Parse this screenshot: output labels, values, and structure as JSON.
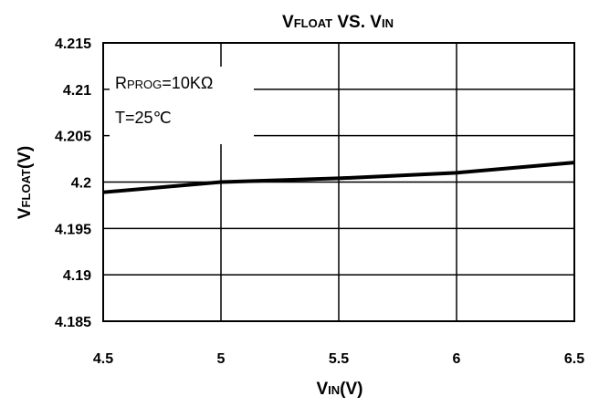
{
  "chart_data": {
    "type": "line",
    "title": {
      "main": "V",
      "sub": "FLOAT",
      "mid": " VS. ",
      "main2": "V",
      "sub2": "IN"
    },
    "xlabel": {
      "main": "V",
      "sub": "IN",
      "rest": "(V)"
    },
    "ylabel": {
      "main": "V",
      "sub": "FLOAT",
      "rest": "(V)"
    },
    "xlim": [
      4.5,
      6.5
    ],
    "ylim": [
      4.185,
      4.215
    ],
    "x_ticks": [
      "4.5",
      "5",
      "5.5",
      "6",
      "6.5"
    ],
    "x_tick_values": [
      4.5,
      5,
      5.5,
      6,
      6.5
    ],
    "y_ticks": [
      "4.215",
      "4.21",
      "4.205",
      "4.2",
      "4.195",
      "4.19",
      "4.185"
    ],
    "y_tick_values": [
      4.215,
      4.21,
      4.205,
      4.2,
      4.195,
      4.19,
      4.185
    ],
    "grid": true,
    "legend": "none",
    "annotations": [
      {
        "main": "R",
        "sub": "PROG",
        "rest": "=10KΩ"
      },
      {
        "main": "T=25℃",
        "sub": "",
        "rest": ""
      }
    ],
    "series": [
      {
        "x": [
          4.5,
          5.0,
          5.5,
          6.0,
          6.5
        ],
        "y": [
          4.1989,
          4.2,
          4.2004,
          4.201,
          4.2021
        ],
        "color": "#000000"
      }
    ]
  }
}
